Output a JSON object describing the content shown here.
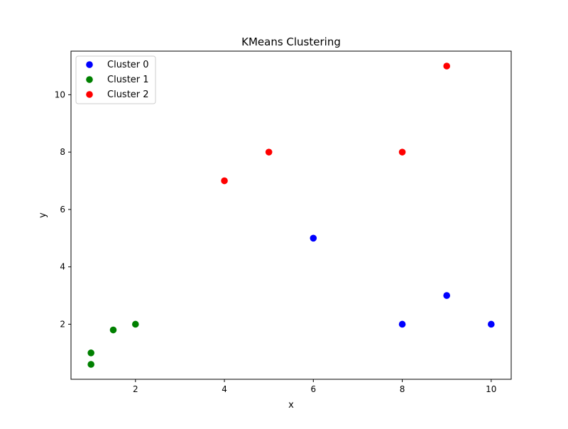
{
  "chart_data": {
    "type": "scatter",
    "title": "KMeans Clustering",
    "xlabel": "x",
    "ylabel": "y",
    "xlim": [
      0.55,
      10.45
    ],
    "ylim": [
      0.08,
      11.52
    ],
    "xticks": [
      2,
      4,
      6,
      8,
      10
    ],
    "yticks": [
      2,
      4,
      6,
      8,
      10
    ],
    "grid": false,
    "legend_position": "top-left",
    "series": [
      {
        "name": "Cluster 0",
        "color": "#0000ff",
        "points": [
          {
            "x": 6,
            "y": 5
          },
          {
            "x": 8,
            "y": 2
          },
          {
            "x": 9,
            "y": 3
          },
          {
            "x": 10,
            "y": 2
          }
        ]
      },
      {
        "name": "Cluster 1",
        "color": "#008000",
        "points": [
          {
            "x": 1,
            "y": 1
          },
          {
            "x": 1,
            "y": 0.6
          },
          {
            "x": 1.5,
            "y": 1.8
          },
          {
            "x": 2,
            "y": 2
          }
        ]
      },
      {
        "name": "Cluster 2",
        "color": "#ff0000",
        "points": [
          {
            "x": 4,
            "y": 7
          },
          {
            "x": 5,
            "y": 8
          },
          {
            "x": 8,
            "y": 8
          },
          {
            "x": 9,
            "y": 11
          }
        ]
      }
    ]
  }
}
